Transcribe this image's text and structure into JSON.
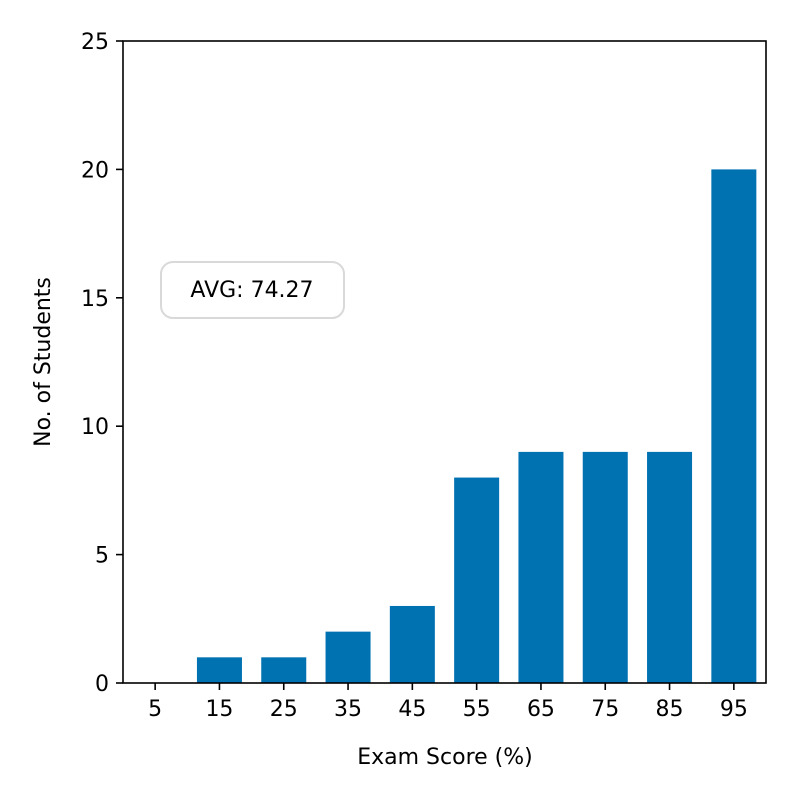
{
  "chart_data": {
    "type": "bar",
    "title": "",
    "xlabel": "Exam Score (%)",
    "ylabel": "No. of Students",
    "categories": [
      "5",
      "15",
      "25",
      "35",
      "45",
      "55",
      "65",
      "75",
      "85",
      "95"
    ],
    "x": [
      5,
      15,
      25,
      35,
      45,
      55,
      65,
      75,
      85,
      95
    ],
    "values": [
      0,
      1,
      1,
      2,
      3,
      8,
      9,
      9,
      9,
      20
    ],
    "xlim": [
      0,
      100
    ],
    "ylim": [
      0,
      25
    ],
    "yticks": [
      "0",
      "5",
      "10",
      "15",
      "20",
      "25"
    ],
    "grid": false,
    "bar_color": "#0072b2",
    "annotation": {
      "text": "AVG: 74.27",
      "position": "middle-left"
    }
  }
}
